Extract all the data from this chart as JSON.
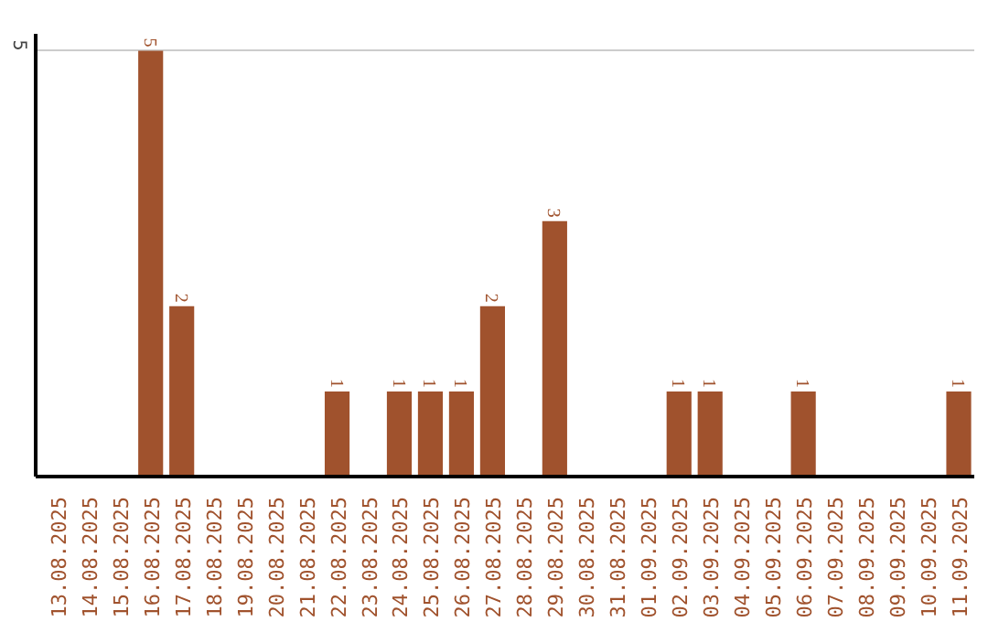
{
  "chart_data": {
    "type": "bar",
    "categories": [
      "13.08.2025",
      "14.08.2025",
      "15.08.2025",
      "16.08.2025",
      "17.08.2025",
      "18.08.2025",
      "19.08.2025",
      "20.08.2025",
      "21.08.2025",
      "22.08.2025",
      "23.08.2025",
      "24.08.2025",
      "25.08.2025",
      "26.08.2025",
      "27.08.2025",
      "28.08.2025",
      "29.08.2025",
      "30.08.2025",
      "31.08.2025",
      "01.09.2025",
      "02.09.2025",
      "03.09.2025",
      "04.09.2025",
      "05.09.2025",
      "06.09.2025",
      "07.09.2025",
      "08.09.2025",
      "09.09.2025",
      "10.09.2025",
      "11.09.2025"
    ],
    "values": [
      0,
      0,
      0,
      5,
      2,
      0,
      0,
      0,
      0,
      1,
      0,
      1,
      1,
      1,
      2,
      0,
      3,
      0,
      0,
      0,
      1,
      1,
      0,
      0,
      1,
      0,
      0,
      0,
      0,
      1
    ],
    "value_labels": [
      null,
      null,
      null,
      "5",
      "2",
      null,
      null,
      null,
      null,
      "1",
      null,
      "1",
      "1",
      "1",
      "2",
      null,
      "3",
      null,
      null,
      null,
      "1",
      "1",
      null,
      null,
      "1",
      null,
      null,
      null,
      null,
      "1"
    ],
    "color": "#a0522d",
    "ylim": [
      0,
      5.2
    ],
    "yticks": [
      5
    ],
    "grid": "y"
  }
}
